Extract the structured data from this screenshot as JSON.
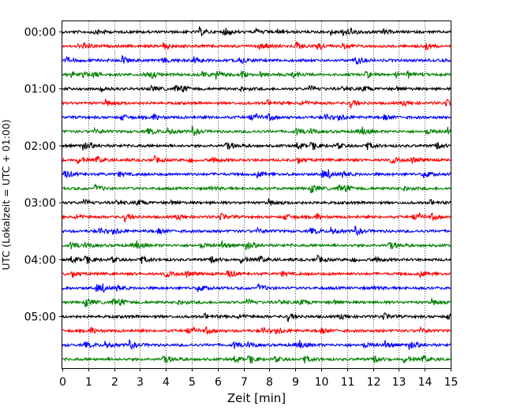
{
  "chart_data": {
    "type": "line",
    "subtype": "helicorder-seismogram",
    "title": "",
    "xlabel": "Zeit  [min]",
    "ylabel": "UTC (Lokalzeit = UTC + 01:00)",
    "xlim": [
      0,
      15
    ],
    "x_ticks": [
      "0",
      "1",
      "2",
      "3",
      "4",
      "5",
      "6",
      "7",
      "8",
      "9",
      "10",
      "11",
      "12",
      "13",
      "14",
      "15"
    ],
    "y_ticks": [
      "00:00",
      "01:00",
      "02:00",
      "03:00",
      "04:00",
      "05:00"
    ],
    "grid": "vertical dotted lines at each minute",
    "legend": "none",
    "trace_colors": [
      "#000000",
      "#ff0000",
      "#0000ff",
      "#008000"
    ],
    "trace_interval_minutes": 15,
    "traces": [
      {
        "start": "00:00",
        "color": "#000000"
      },
      {
        "start": "00:15",
        "color": "#ff0000"
      },
      {
        "start": "00:30",
        "color": "#0000ff"
      },
      {
        "start": "00:45",
        "color": "#008000"
      },
      {
        "start": "01:00",
        "color": "#000000"
      },
      {
        "start": "01:15",
        "color": "#ff0000"
      },
      {
        "start": "01:30",
        "color": "#0000ff"
      },
      {
        "start": "01:45",
        "color": "#008000"
      },
      {
        "start": "02:00",
        "color": "#000000"
      },
      {
        "start": "02:15",
        "color": "#ff0000"
      },
      {
        "start": "02:30",
        "color": "#0000ff"
      },
      {
        "start": "02:45",
        "color": "#008000"
      },
      {
        "start": "03:00",
        "color": "#000000"
      },
      {
        "start": "03:15",
        "color": "#ff0000"
      },
      {
        "start": "03:30",
        "color": "#0000ff"
      },
      {
        "start": "03:45",
        "color": "#008000"
      },
      {
        "start": "04:00",
        "color": "#000000"
      },
      {
        "start": "04:15",
        "color": "#ff0000"
      },
      {
        "start": "04:30",
        "color": "#0000ff"
      },
      {
        "start": "04:45",
        "color": "#008000"
      },
      {
        "start": "05:00",
        "color": "#000000"
      },
      {
        "start": "05:15",
        "color": "#ff0000"
      },
      {
        "start": "05:30",
        "color": "#0000ff"
      },
      {
        "start": "05:45",
        "color": "#008000"
      }
    ]
  }
}
